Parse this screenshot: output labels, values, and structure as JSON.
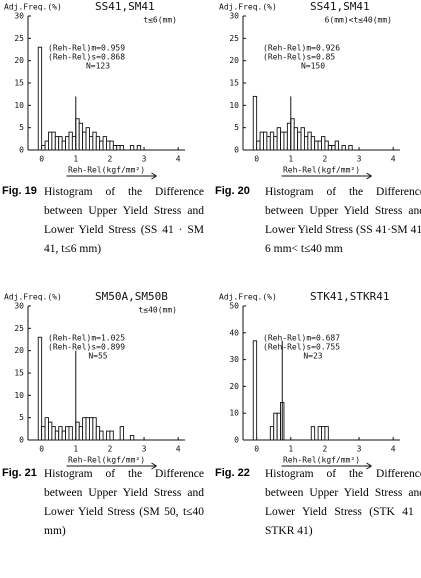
{
  "chart_data": [
    {
      "type": "histogram",
      "y_label": "Adj.Freq.(%)",
      "title": "SS41,SM41",
      "subtitle": "t≤6(mm)",
      "annotations": [
        "(Reh-Rel)m=0.959",
        "(Reh-Rel)s=0.868",
        "N=123"
      ],
      "x_label": "Reh-Rel(kgf/mm²)",
      "bins": [
        -0.2,
        -0.1,
        0,
        0.1,
        0.2,
        0.3,
        0.4,
        0.5,
        0.6,
        0.7,
        0.8,
        0.9,
        1.0,
        1.1,
        1.2,
        1.3,
        1.4,
        1.5,
        1.6,
        1.7,
        1.8,
        1.9,
        2.0,
        2.1,
        2.2,
        2.3,
        2.4,
        2.5,
        2.6,
        2.7,
        2.8,
        2.9,
        3.0
      ],
      "counts": [
        0,
        23,
        1,
        2,
        4,
        4,
        3,
        3,
        2,
        3,
        4,
        3,
        7,
        6,
        4,
        5,
        3,
        4,
        3,
        2,
        3,
        2,
        2,
        1,
        1,
        1,
        0,
        0,
        1,
        0,
        1,
        0
      ],
      "ref_line": {
        "x": 1.0,
        "height": 12
      },
      "xlim": [
        -0.4,
        4.2
      ],
      "xticks": [
        0,
        1,
        2,
        3,
        4
      ],
      "ylim": [
        0,
        30
      ],
      "yticks": [
        0,
        5,
        10,
        15,
        20,
        25,
        30
      ]
    },
    {
      "type": "histogram",
      "y_label": "Adj.Freq.(%)",
      "title": "SS41,SM41",
      "subtitle": "6(mm)<t≤40(mm)",
      "annotations": [
        "(Reh-Rel)m=0.926",
        "(Reh-Rel)s=0.85",
        "N=150"
      ],
      "x_label": "Reh-Rel(kgf/mm²)",
      "bins": [
        -0.2,
        -0.1,
        0,
        0.1,
        0.2,
        0.3,
        0.4,
        0.5,
        0.6,
        0.7,
        0.8,
        0.9,
        1.0,
        1.1,
        1.2,
        1.3,
        1.4,
        1.5,
        1.6,
        1.7,
        1.8,
        1.9,
        2.0,
        2.1,
        2.2,
        2.3,
        2.4,
        2.5,
        2.6,
        2.7,
        2.8,
        2.9,
        3.0
      ],
      "counts": [
        0,
        12,
        2,
        4,
        4,
        3,
        4,
        3,
        5,
        4,
        4,
        6,
        7,
        5,
        4,
        5,
        3,
        4,
        3,
        2,
        2,
        3,
        2,
        1,
        1,
        2,
        0,
        1,
        0,
        1,
        0,
        0
      ],
      "ref_line": {
        "x": 1.0,
        "height": 12
      },
      "xlim": [
        -0.4,
        4.2
      ],
      "xticks": [
        0,
        1,
        2,
        3,
        4
      ],
      "ylim": [
        0,
        30
      ],
      "yticks": [
        0,
        5,
        10,
        15,
        20,
        25,
        30
      ]
    },
    {
      "type": "histogram",
      "y_label": "Adj.Freq.(%)",
      "title": "SM50A,SM50B",
      "subtitle": "t≤40(mm)",
      "annotations": [
        "(Reh-Rel)m=1.025",
        "(Reh-Rel)s=0.899",
        "N=55"
      ],
      "x_label": "Reh-Rel(kgf/mm²)",
      "bins": [
        -0.2,
        -0.1,
        0,
        0.1,
        0.2,
        0.3,
        0.4,
        0.5,
        0.6,
        0.7,
        0.8,
        0.9,
        1.0,
        1.1,
        1.2,
        1.3,
        1.4,
        1.5,
        1.6,
        1.7,
        1.8,
        1.9,
        2.0,
        2.1,
        2.2,
        2.3,
        2.4,
        2.5,
        2.6,
        2.7,
        2.8,
        2.9,
        3.0
      ],
      "counts": [
        0,
        23,
        3,
        5,
        4,
        3,
        2,
        3,
        2,
        3,
        3,
        0,
        4,
        3,
        5,
        5,
        5,
        5,
        3,
        2,
        0,
        2,
        2,
        0,
        0,
        3,
        0,
        0,
        1,
        0,
        0,
        0
      ],
      "ref_line": {
        "x": 1.0,
        "height": 20
      },
      "xlim": [
        -0.4,
        4.2
      ],
      "xticks": [
        0,
        1,
        2,
        3,
        4
      ],
      "ylim": [
        0,
        30
      ],
      "yticks": [
        0,
        5,
        10,
        15,
        20,
        25,
        30
      ]
    },
    {
      "type": "histogram",
      "y_label": "Adj.Freq.(%)",
      "title": "STK41,STKR41",
      "annotations": [
        "(Reh-Rel)m=0.687",
        "(Reh-Rel)s=0.755",
        "N=23"
      ],
      "x_label": "Reh-Rel(kgf/mm²)",
      "bins": [
        -0.2,
        -0.1,
        0,
        0.1,
        0.2,
        0.3,
        0.4,
        0.5,
        0.6,
        0.7,
        0.8,
        0.9,
        1.0,
        1.1,
        1.2,
        1.3,
        1.4,
        1.5,
        1.6,
        1.7,
        1.8,
        1.9,
        2.0,
        2.1,
        2.2,
        2.3,
        2.4,
        2.5,
        2.6,
        2.7,
        2.8,
        2.9,
        3.0
      ],
      "counts": [
        0,
        37,
        0,
        0,
        0,
        0,
        5,
        10,
        10,
        14,
        0,
        0,
        0,
        0,
        0,
        0,
        0,
        0,
        5,
        0,
        5,
        5,
        5,
        0,
        0,
        0,
        0,
        0,
        0,
        0,
        0,
        0
      ],
      "ref_line": {
        "x": 0.75,
        "height": 37
      },
      "xlim": [
        -0.4,
        4.2
      ],
      "xticks": [
        0,
        1,
        2,
        3,
        4
      ],
      "ylim": [
        0,
        50
      ],
      "yticks": [
        0,
        10,
        20,
        30,
        40,
        50
      ]
    }
  ],
  "captions": [
    {
      "label": "Fig. 19",
      "text": "Histogram of the Difference between Upper Yield Stress and Lower Yield Stress (SS 41 · SM 41, t≤6 mm)"
    },
    {
      "label": "Fig. 20",
      "text": "Histogram of the Difference between Upper Yield Stress and Lower Yield Stress (SS 41·SM 41, 6 mm< t≤40 mm"
    },
    {
      "label": "Fig. 21",
      "text": "Histogram of the Difference between Upper Yield Stress and Lower Yield Stress (SM 50, t≤40 mm)"
    },
    {
      "label": "Fig. 22",
      "text": "Histogram of the Difference between Upper Yield Stress and Lower Yield Stress (STK 41 · STKR 41)"
    }
  ]
}
